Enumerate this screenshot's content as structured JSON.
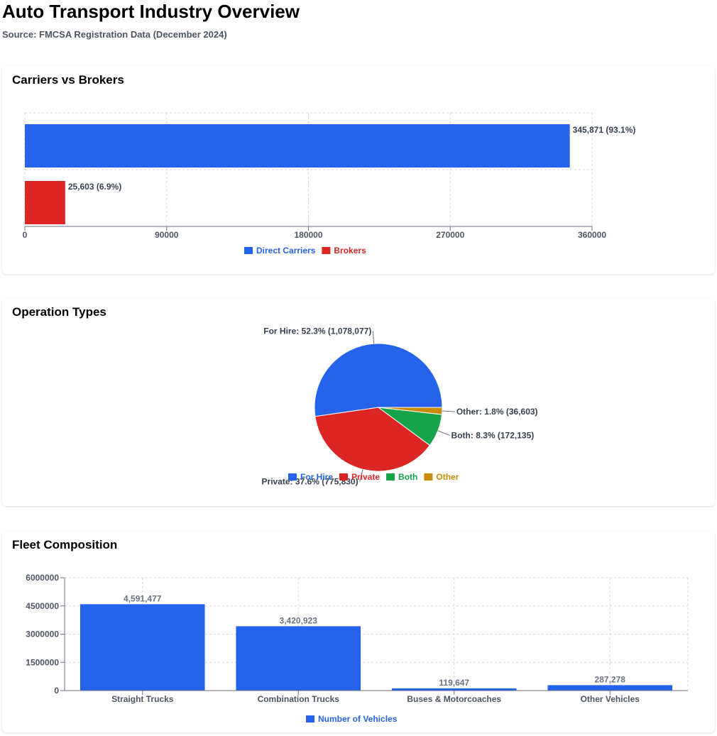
{
  "header": {
    "title": "Auto Transport Industry Overview",
    "subtitle": "Source: FMCSA Registration Data (December 2024)"
  },
  "colors": {
    "blue": "#2563eb",
    "red": "#dc2626",
    "green": "#16a34a",
    "amber": "#ca8a04"
  },
  "chart_data": [
    {
      "id": "carriers",
      "type": "bar",
      "orientation": "horizontal",
      "title": "Carriers vs Brokers",
      "categories": [
        "Direct Carriers",
        "Brokers"
      ],
      "values": [
        345871,
        25603
      ],
      "labels": [
        "345,871 (93.1%)",
        "25,603 (6.9%)"
      ],
      "colors": [
        "#2563eb",
        "#dc2626"
      ],
      "xlim": [
        0,
        360000
      ],
      "ticks": [
        "0",
        "90000",
        "180000",
        "270000",
        "360000"
      ],
      "tick_values": [
        0,
        90000,
        180000,
        270000,
        360000
      ],
      "legend": [
        "Direct Carriers",
        "Brokers"
      ],
      "legend_position": "bottom",
      "grid": true
    },
    {
      "id": "operations",
      "type": "pie",
      "title": "Operation Types",
      "categories": [
        "For Hire",
        "Private",
        "Both",
        "Other"
      ],
      "values": [
        1078077,
        775830,
        172135,
        36603
      ],
      "percents": [
        52.3,
        37.6,
        8.3,
        1.8
      ],
      "labels": [
        "For Hire: 52.3% (1,078,077)",
        "Private: 37.6% (775,830)",
        "Both: 8.3% (172,135)",
        "Other: 1.8% (36,603)"
      ],
      "colors": [
        "#2563eb",
        "#dc2626",
        "#16a34a",
        "#ca8a04"
      ],
      "legend": [
        "For Hire",
        "Private",
        "Both",
        "Other"
      ],
      "legend_position": "bottom"
    },
    {
      "id": "fleet",
      "type": "bar",
      "orientation": "vertical",
      "title": "Fleet Composition",
      "categories": [
        "Straight Trucks",
        "Combination Trucks",
        "Buses & Motorcoaches",
        "Other Vehicles"
      ],
      "series": [
        {
          "name": "Number of Vehicles",
          "values": [
            4591477,
            3420923,
            119647,
            287278
          ]
        }
      ],
      "labels": [
        "4,591,477",
        "3,420,923",
        "119,647",
        "287,278"
      ],
      "ylim": [
        0,
        6000000
      ],
      "ticks": [
        "0",
        "1500000",
        "3000000",
        "4500000",
        "6000000"
      ],
      "tick_values": [
        0,
        1500000,
        3000000,
        4500000,
        6000000
      ],
      "legend": [
        "Number of Vehicles"
      ],
      "legend_position": "bottom",
      "grid": true
    }
  ]
}
